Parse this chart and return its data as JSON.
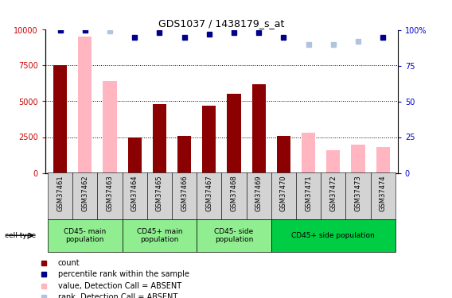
{
  "title": "GDS1037 / 1438179_s_at",
  "samples": [
    "GSM37461",
    "GSM37462",
    "GSM37463",
    "GSM37464",
    "GSM37465",
    "GSM37466",
    "GSM37467",
    "GSM37468",
    "GSM37469",
    "GSM37470",
    "GSM37471",
    "GSM37472",
    "GSM37473",
    "GSM37474"
  ],
  "count_values": [
    7500,
    null,
    null,
    2500,
    4800,
    2600,
    4700,
    5500,
    6200,
    2600,
    null,
    null,
    null,
    null
  ],
  "count_absent_values": [
    null,
    9500,
    6400,
    null,
    null,
    null,
    null,
    null,
    null,
    null,
    2800,
    1600,
    2000,
    1800
  ],
  "rank_values": [
    100,
    100,
    null,
    95,
    98,
    95,
    97,
    98,
    98,
    95,
    null,
    null,
    null,
    95
  ],
  "rank_absent_values": [
    null,
    null,
    99,
    null,
    null,
    null,
    null,
    null,
    null,
    null,
    90,
    90,
    92,
    null
  ],
  "count_color": "#8B0000",
  "count_absent_color": "#FFB6C1",
  "rank_color": "#00008B",
  "rank_absent_color": "#B0C4DE",
  "ylim_left": [
    0,
    10000
  ],
  "ylim_right": [
    0,
    100
  ],
  "yticks_left": [
    0,
    2500,
    5000,
    7500,
    10000
  ],
  "yticks_right": [
    0,
    25,
    50,
    75,
    100
  ],
  "ylabel_left_color": "#CC0000",
  "ylabel_right_color": "#0000CC",
  "grid_values": [
    2500,
    5000,
    7500
  ],
  "bar_width": 0.55,
  "group_boundaries": [
    {
      "start": 0,
      "end": 2,
      "label": "CD45- main\npopulation",
      "color": "#90EE90"
    },
    {
      "start": 3,
      "end": 5,
      "label": "CD45+ main\npopulation",
      "color": "#90EE90"
    },
    {
      "start": 6,
      "end": 8,
      "label": "CD45- side\npopulation",
      "color": "#90EE90"
    },
    {
      "start": 9,
      "end": 13,
      "label": "CD45+ side population",
      "color": "#00CC44"
    }
  ],
  "legend_items": [
    {
      "color": "#8B0000",
      "marker": "s",
      "label": "count"
    },
    {
      "color": "#00008B",
      "marker": "s",
      "label": "percentile rank within the sample"
    },
    {
      "color": "#FFB6C1",
      "marker": "s",
      "label": "value, Detection Call = ABSENT"
    },
    {
      "color": "#B0C4DE",
      "marker": "s",
      "label": "rank, Detection Call = ABSENT"
    }
  ]
}
